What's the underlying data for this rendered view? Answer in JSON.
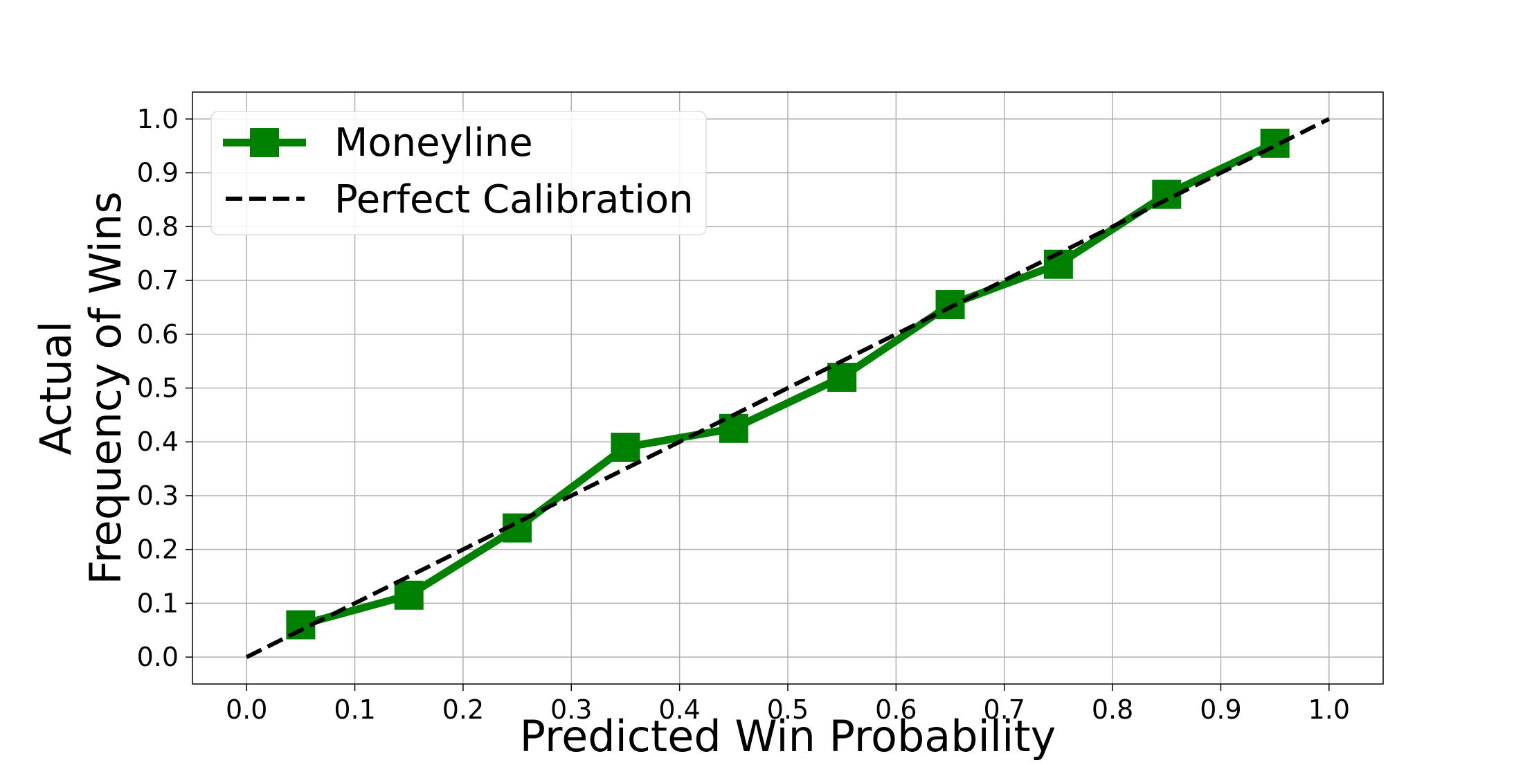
{
  "chart_data": {
    "type": "line",
    "title": "",
    "xlabel": "Predicted Win Probability",
    "ylabel_lines": [
      "Actual",
      "Frequency of Wins"
    ],
    "xlim": [
      -0.05,
      1.05
    ],
    "ylim": [
      -0.05,
      1.05
    ],
    "x_ticks": [
      "0.0",
      "0.1",
      "0.2",
      "0.3",
      "0.4",
      "0.5",
      "0.6",
      "0.7",
      "0.8",
      "0.9",
      "1.0"
    ],
    "y_ticks": [
      "0.0",
      "0.1",
      "0.2",
      "0.3",
      "0.4",
      "0.5",
      "0.6",
      "0.7",
      "0.8",
      "0.9",
      "1.0"
    ],
    "grid": true,
    "legend_position": "top-left",
    "series": [
      {
        "name": "Moneyline",
        "style": "solid",
        "marker": "square",
        "color": "#008000",
        "x": [
          0.05,
          0.15,
          0.25,
          0.35,
          0.45,
          0.55,
          0.65,
          0.75,
          0.85,
          0.95
        ],
        "y": [
          0.06,
          0.115,
          0.24,
          0.39,
          0.425,
          0.52,
          0.655,
          0.73,
          0.86,
          0.955
        ]
      },
      {
        "name": "Perfect Calibration",
        "style": "dashed",
        "marker": "none",
        "color": "#000000",
        "x": [
          0.0,
          1.0
        ],
        "y": [
          0.0,
          1.0
        ]
      }
    ]
  }
}
